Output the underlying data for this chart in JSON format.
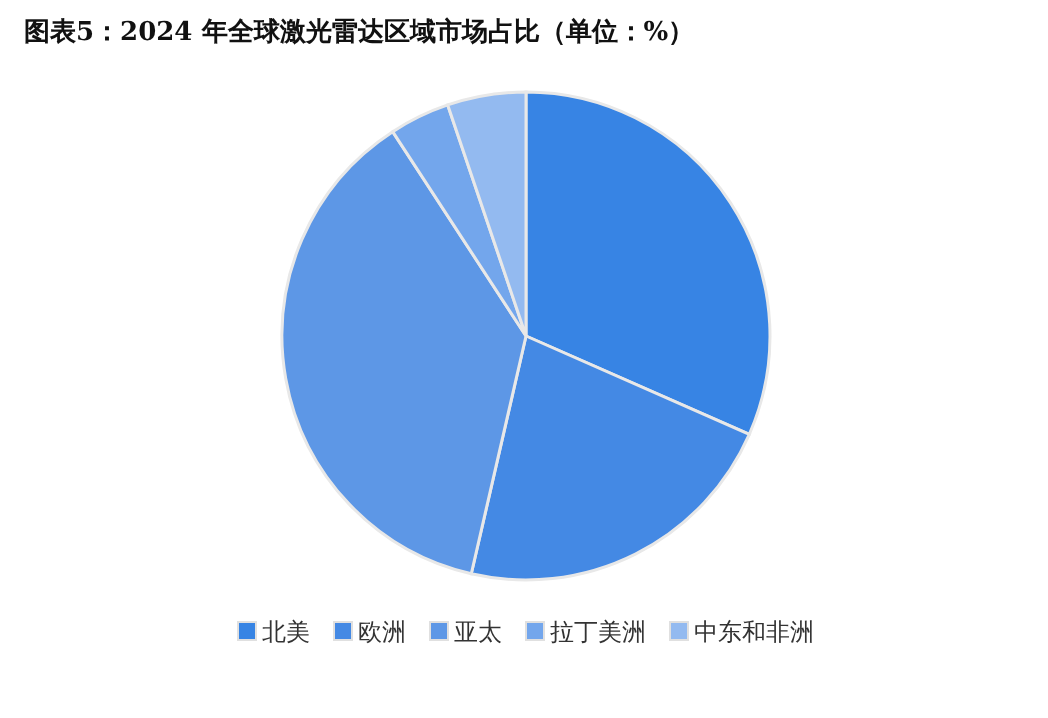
{
  "chart_data": {
    "type": "pie",
    "title": "图表5：2024 年全球激光雷达区域市场占比（单位：%）",
    "categories": [
      "北美",
      "欧洲",
      "亚太",
      "拉丁美洲",
      "中东和非洲"
    ],
    "values": [
      31.6,
      22,
      37.2,
      4,
      5.2
    ],
    "colors": [
      "#3784e4",
      "#4489e4",
      "#5d97e6",
      "#73a6ec",
      "#93baf0"
    ],
    "legend": "bottom"
  }
}
